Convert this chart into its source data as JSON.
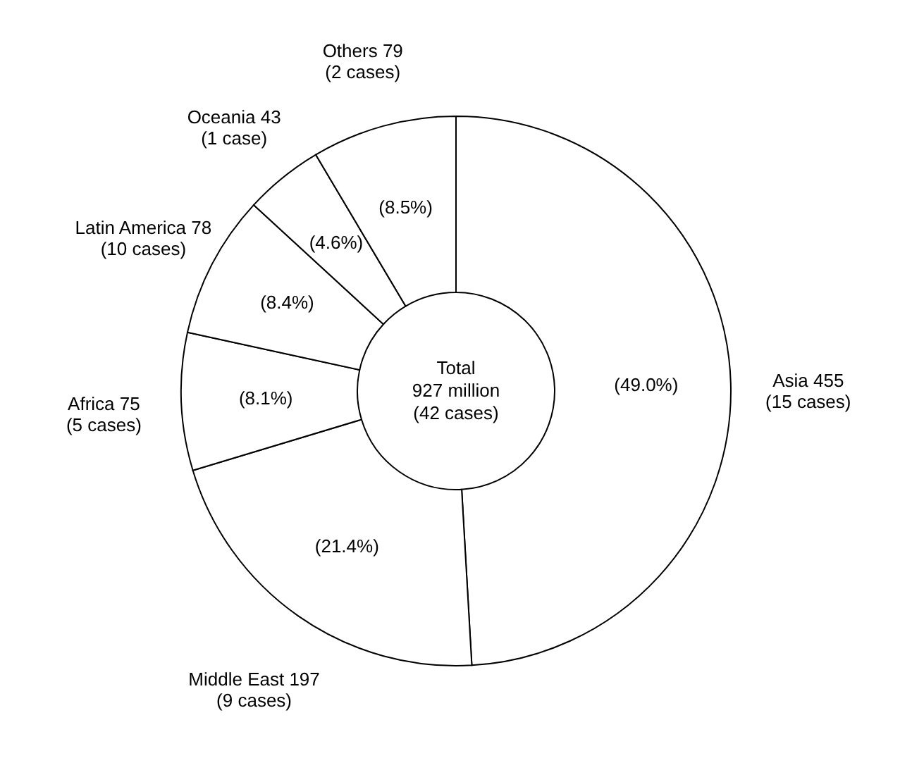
{
  "chart_data": {
    "type": "donut",
    "categories": [
      "Asia 455 (15 cases)",
      "Middle East 197 (9 cases)",
      "Africa 75 (5 cases)",
      "Latin America 78 (10 cases)",
      "Oceania 43 (1 case)",
      "Others 79 (2 cases)"
    ],
    "values": [
      455,
      197,
      75,
      78,
      43,
      79
    ],
    "colors": [
      "#ffffff",
      "#ffffff",
      "#ffffff",
      "#ffffff",
      "#ffffff",
      "#ffffff"
    ],
    "annotations": [
      "Total",
      "927 million",
      "(42 cases)",
      {
        "text": "(49.0%)",
        "x": "Asia 455 (15 cases)"
      },
      {
        "text": "(21.4%)",
        "x": "Middle East 197 (9 cases)"
      },
      {
        "text": "(8.1%)",
        "x": "Africa 75 (5 cases)"
      },
      {
        "text": "(8.4%)",
        "x": "Latin America 78 (10 cases)"
      },
      {
        "text": "(4.6%)",
        "x": "Oceania 43 (1 case)"
      },
      {
        "text": "(8.5%)",
        "x": "Others 79 (2 cases)"
      }
    ]
  }
}
